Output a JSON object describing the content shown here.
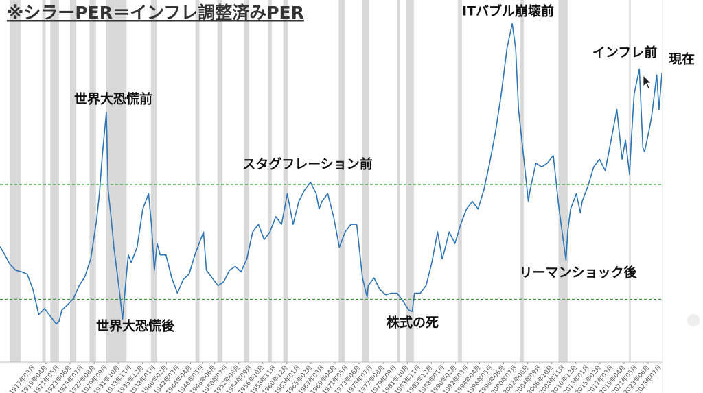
{
  "chart_data": {
    "type": "line",
    "title": "※シラーPER＝インフレ調整済みPER",
    "annotations": [
      "世界大恐慌前",
      "世界大恐慌後",
      "スタグフレーション前",
      "株式の死",
      "ITバブル崩壊前",
      "リーマンショック後",
      "インフレ前",
      "現在"
    ],
    "xlim": [
      1911.3,
      2025.9
    ],
    "ylim": [
      0,
      47.3
    ],
    "xticks": [
      {
        "value": 1917.167,
        "label": "1917年03月"
      },
      {
        "value": 1919.25,
        "label": "1919年04月"
      },
      {
        "value": 1921.333,
        "label": "1921年05月"
      },
      {
        "value": 1923.417,
        "label": "1923年06月"
      },
      {
        "value": 1925.5,
        "label": "1925年07月"
      },
      {
        "value": 1927.583,
        "label": "1927年08月"
      },
      {
        "value": 1929.667,
        "label": "1929年09月"
      },
      {
        "value": 1931.75,
        "label": "1931年10月"
      },
      {
        "value": 1933.833,
        "label": "1933年11月"
      },
      {
        "value": 1935.917,
        "label": "1935年12月"
      },
      {
        "value": 1938.0,
        "label": "1938年01月"
      },
      {
        "value": 1940.083,
        "label": "1940年02月"
      },
      {
        "value": 1942.167,
        "label": "1942年03月"
      },
      {
        "value": 1944.25,
        "label": "1944年04月"
      },
      {
        "value": 1946.333,
        "label": "1946年05月"
      },
      {
        "value": 1948.417,
        "label": "1948年06月"
      },
      {
        "value": 1950.5,
        "label": "1950年07月"
      },
      {
        "value": 1952.583,
        "label": "1952年08月"
      },
      {
        "value": 1954.667,
        "label": "1954年09月"
      },
      {
        "value": 1956.75,
        "label": "1956年10月"
      },
      {
        "value": 1958.833,
        "label": "1958年11月"
      },
      {
        "value": 1960.917,
        "label": "1960年12月"
      },
      {
        "value": 1963.0,
        "label": "1963年01月"
      },
      {
        "value": 1965.083,
        "label": "1965年02月"
      },
      {
        "value": 1967.167,
        "label": "1967年03月"
      },
      {
        "value": 1969.25,
        "label": "1969年04月"
      },
      {
        "value": 1971.333,
        "label": "1971年05月"
      },
      {
        "value": 1973.417,
        "label": "1973年06月"
      },
      {
        "value": 1975.5,
        "label": "1975年07月"
      },
      {
        "value": 1977.583,
        "label": "1977年08月"
      },
      {
        "value": 1979.667,
        "label": "1979年09月"
      },
      {
        "value": 1981.75,
        "label": "1981年10月"
      },
      {
        "value": 1983.833,
        "label": "1983年11月"
      },
      {
        "value": 1985.917,
        "label": "1985年12月"
      },
      {
        "value": 1988.0,
        "label": "1988年01月"
      },
      {
        "value": 1990.083,
        "label": "1990年02月"
      },
      {
        "value": 1992.167,
        "label": "1992年03月"
      },
      {
        "value": 1994.25,
        "label": "1994年04月"
      },
      {
        "value": 1996.333,
        "label": "1996年05月"
      },
      {
        "value": 1998.417,
        "label": "1998年06月"
      },
      {
        "value": 2000.5,
        "label": "2000年07月"
      },
      {
        "value": 2002.583,
        "label": "2002年08月"
      },
      {
        "value": 2004.667,
        "label": "2004年09月"
      },
      {
        "value": 2006.75,
        "label": "2006年10月"
      },
      {
        "value": 2008.833,
        "label": "2008年11月"
      },
      {
        "value": 2010.917,
        "label": "2010年12月"
      },
      {
        "value": 2013.0,
        "label": "2013年01月"
      },
      {
        "value": 2015.083,
        "label": "2015年02月"
      },
      {
        "value": 2017.167,
        "label": "2017年03月"
      },
      {
        "value": 2019.25,
        "label": "2019年04月"
      },
      {
        "value": 2021.333,
        "label": "2021年05月"
      },
      {
        "value": 2023.417,
        "label": "2023年06月"
      },
      {
        "value": 2025.5,
        "label": "2025年07月"
      }
    ],
    "recessions": [
      [
        1913.0,
        1914.9
      ],
      [
        1918.6,
        1919.2
      ],
      [
        1920.0,
        1921.5
      ],
      [
        1923.4,
        1924.5
      ],
      [
        1926.8,
        1927.9
      ],
      [
        1929.6,
        1933.2
      ],
      [
        1937.4,
        1938.5
      ],
      [
        1945.1,
        1945.8
      ],
      [
        1948.9,
        1949.8
      ],
      [
        1953.5,
        1954.4
      ],
      [
        1957.6,
        1958.3
      ],
      [
        1960.3,
        1961.1
      ],
      [
        1969.9,
        1970.9
      ],
      [
        1973.9,
        1975.2
      ],
      [
        1980.0,
        1980.5
      ],
      [
        1981.5,
        1982.9
      ],
      [
        1990.5,
        1991.2
      ],
      [
        2001.2,
        2001.9
      ],
      [
        2007.9,
        2009.5
      ],
      [
        2020.1,
        2020.4
      ]
    ],
    "recession_color": "#d9d9d9",
    "hlines": [
      23.2,
      8.2
    ],
    "hline_color": "#2ca02c",
    "series": [
      {
        "color": "#2e75b6",
        "x": [
          1911.3,
          1912,
          1913,
          1914,
          1915,
          1916,
          1917,
          1918,
          1919,
          1920,
          1921,
          1921.5,
          1922,
          1923,
          1924,
          1925,
          1926,
          1927,
          1928,
          1928.5,
          1929,
          1929.7,
          1930,
          1930.5,
          1931,
          1931.5,
          1932,
          1932.5,
          1933,
          1933.5,
          1934,
          1935,
          1936,
          1937,
          1937.5,
          1938,
          1938.5,
          1939,
          1940,
          1941,
          1942,
          1943,
          1944,
          1945,
          1946,
          1946.5,
          1947,
          1948,
          1949,
          1950,
          1951,
          1952,
          1953,
          1954,
          1955,
          1956,
          1957,
          1958,
          1959,
          1960,
          1961,
          1962,
          1963,
          1964,
          1965,
          1966,
          1966.5,
          1967,
          1968,
          1969,
          1970,
          1971,
          1972,
          1973,
          1974,
          1974.8,
          1975,
          1976,
          1977,
          1978,
          1979,
          1980,
          1981,
          1982,
          1982.6,
          1983,
          1984,
          1985,
          1986,
          1987,
          1987.8,
          1988,
          1989,
          1990,
          1991,
          1992,
          1993,
          1994,
          1995,
          1996,
          1997,
          1998,
          1999,
          1999.9,
          2000.5,
          2001,
          2002,
          2002.7,
          2003,
          2004,
          2005,
          2006,
          2007,
          2008,
          2009.2,
          2009.5,
          2010,
          2011,
          2011.7,
          2012,
          2013,
          2014,
          2015,
          2016,
          2017,
          2018,
          2018.9,
          2019.5,
          2020.2,
          2020.5,
          2021,
          2021.9,
          2022.5,
          2022.8,
          2023.5,
          2024,
          2024.9,
          2025.3,
          2025.8
        ],
        "values": [
          15.1,
          14.2,
          12.8,
          12.0,
          11.8,
          11.5,
          9.5,
          6.2,
          7.0,
          6.0,
          5.0,
          5.3,
          6.8,
          7.5,
          8.3,
          10.0,
          11.2,
          13.5,
          18.5,
          22,
          27,
          32.6,
          22.5,
          19,
          15,
          12,
          9.0,
          5.6,
          10,
          14,
          13,
          15,
          20,
          22,
          18,
          12,
          15.5,
          14,
          14,
          11,
          9,
          10.8,
          11.5,
          14,
          16,
          17,
          12,
          11,
          10,
          10.5,
          12,
          12.5,
          11.8,
          13.5,
          17,
          18,
          16,
          17,
          19,
          18,
          22,
          18,
          21,
          22.5,
          23.5,
          22,
          20,
          21,
          22,
          19,
          15,
          17,
          18,
          18,
          11,
          8.5,
          10,
          11,
          9.5,
          8.8,
          9,
          9,
          8,
          6.8,
          6.6,
          9,
          9,
          10,
          13,
          17,
          13.5,
          14,
          17,
          15.5,
          18,
          20,
          21,
          20,
          22.5,
          26,
          30,
          35,
          41,
          44.2,
          41,
          33,
          26,
          21,
          22.5,
          26,
          25.5,
          26,
          27,
          20,
          13.3,
          17,
          20,
          22,
          19.5,
          21,
          23,
          25.5,
          26.5,
          25,
          29,
          33,
          26.5,
          29,
          24.5,
          29,
          35,
          38.3,
          28,
          27.5,
          30,
          32,
          37.5,
          33,
          37.8
        ]
      }
    ]
  }
}
